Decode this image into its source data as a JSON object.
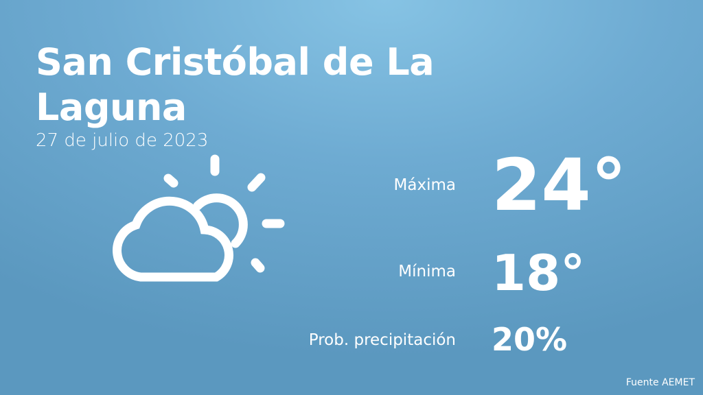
{
  "location": "San Cristóbal de La Laguna",
  "date": "27 de julio de 2023",
  "weather_icon": "partly-cloudy-icon",
  "max": {
    "label": "Máxima",
    "value": "24°"
  },
  "min": {
    "label": "Mínima",
    "value": "18°"
  },
  "precip": {
    "label": "Prob. precipitación",
    "value": "20%"
  },
  "source": "Fuente AEMET"
}
